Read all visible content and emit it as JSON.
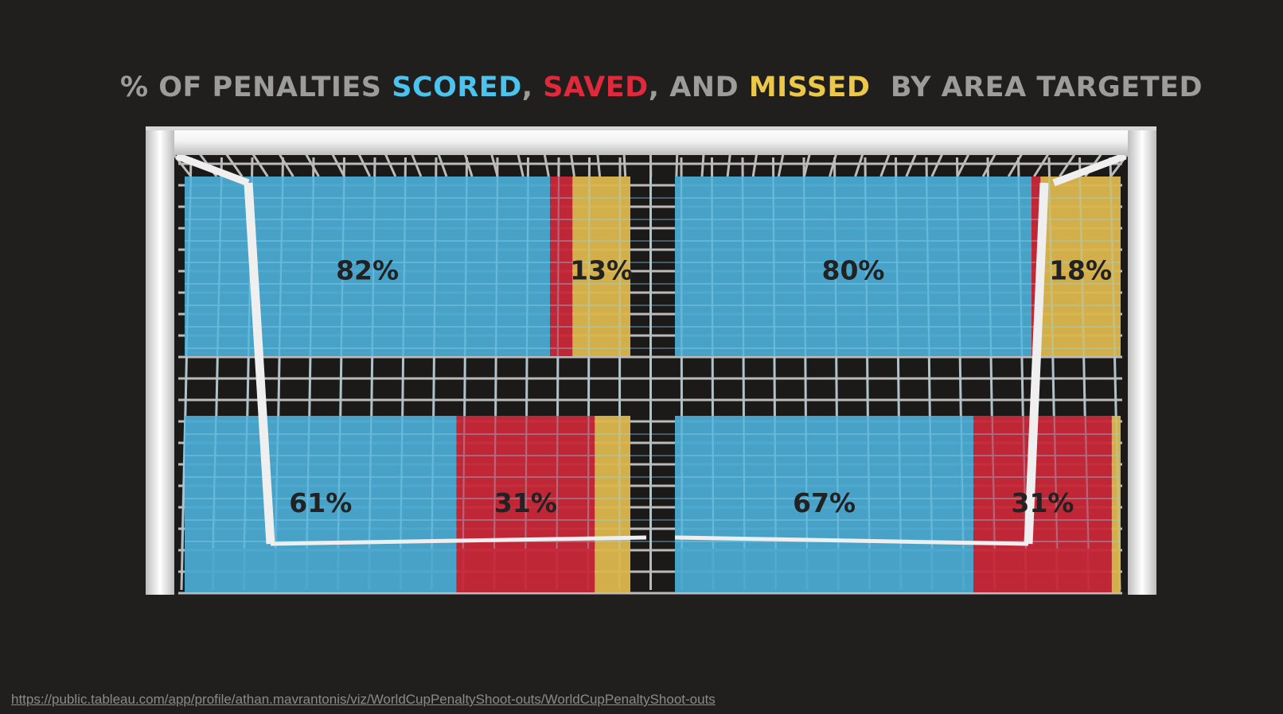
{
  "title": {
    "prefix": "% OF PENALTIES ",
    "scored": "SCORED",
    "sep1": ", ",
    "saved": "SAVED",
    "sep2": ", AND ",
    "missed": "MISSED",
    "suffix": "  BY AREA TARGETED"
  },
  "colors": {
    "scored": "#4aa8cf",
    "saved": "#c62838",
    "missed": "#dbb54d",
    "background": "#201f1d",
    "net": "#d8d8d8",
    "post": "#efefef"
  },
  "chart_data": {
    "type": "bar",
    "stacked": true,
    "orientation": "horizontal",
    "series": [
      {
        "name": "SCORED",
        "color": "#4aa8cf"
      },
      {
        "name": "SAVED",
        "color": "#c62838"
      },
      {
        "name": "MISSED",
        "color": "#dbb54d"
      }
    ],
    "zones": [
      {
        "row": "top",
        "side": "left",
        "scored": 82,
        "saved": 5,
        "missed": 13,
        "labels": {
          "scored": "82%",
          "saved": "",
          "missed": "13%"
        }
      },
      {
        "row": "top",
        "side": "right",
        "scored": 80,
        "saved": 2,
        "missed": 18,
        "labels": {
          "scored": "80%",
          "saved": "",
          "missed": "18%"
        }
      },
      {
        "row": "bottom",
        "side": "left",
        "scored": 61,
        "saved": 31,
        "missed": 8,
        "labels": {
          "scored": "61%",
          "saved": "31%",
          "missed": ""
        }
      },
      {
        "row": "bottom",
        "side": "right",
        "scored": 67,
        "saved": 31,
        "missed": 2,
        "labels": {
          "scored": "67%",
          "saved": "31%",
          "missed": ""
        }
      }
    ]
  },
  "footer": {
    "url": "https://public.tableau.com/app/profile/athan.mavrantonis/viz/WorldCupPenaltyShoot-outs/WorldCupPenaltyShoot-outs"
  }
}
